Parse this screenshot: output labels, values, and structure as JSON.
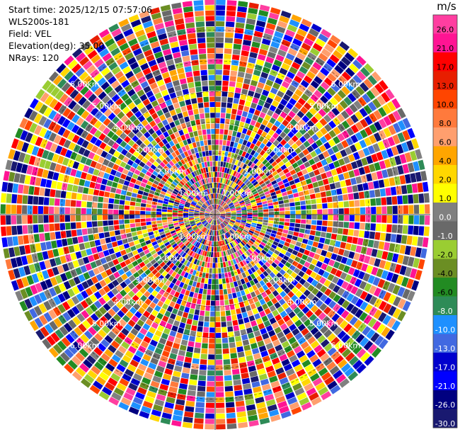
{
  "info": {
    "start_time_label": "Start time:",
    "start_time": "2025/12/15 07:57:06",
    "instrument": "WLS200s-181",
    "field_label": "Field:",
    "field": "VEL",
    "elevation_label": "Elevation(deg):",
    "elevation": "35.00",
    "nrays_label": "NRays:",
    "nrays": "120"
  },
  "chart_data": {
    "type": "heatmap",
    "projection": "polar-ppi",
    "field": "VEL",
    "units": "m/s",
    "elevation_deg": 35.0,
    "nrays": 120,
    "range_rings_km": [
      1,
      2,
      3,
      4,
      5,
      6
    ],
    "range_ring_labels": [
      "1.00km",
      "2.00km",
      "3.00km",
      "4.00km",
      "5.00km",
      "6.00km"
    ],
    "max_range_km": 7.0,
    "colorbar": {
      "unit": "m/s",
      "ticks": [
        "26.0",
        "21.0",
        "17.0",
        "13.0",
        "10.0",
        "8.0",
        "6.0",
        "4.0",
        "2.0",
        "1.0",
        "0.0",
        "-1.0",
        "-2.0",
        "-4.0",
        "-6.0",
        "-8.0",
        "-10.0",
        "-13.0",
        "-17.0",
        "-21.0",
        "-26.0",
        "-30.0"
      ],
      "colors": [
        "#ff3ea0",
        "#ff1493",
        "#ff0000",
        "#e81e00",
        "#ff4500",
        "#ff7a3c",
        "#ff9f6e",
        "#ffa500",
        "#ffd700",
        "#ffff00",
        "#808080",
        "#696969",
        "#9acd32",
        "#6b8e23",
        "#228b22",
        "#2e8b57",
        "#1e90ff",
        "#4169e1",
        "#0000cd",
        "#0000ff",
        "#000080",
        "#191970"
      ]
    }
  }
}
